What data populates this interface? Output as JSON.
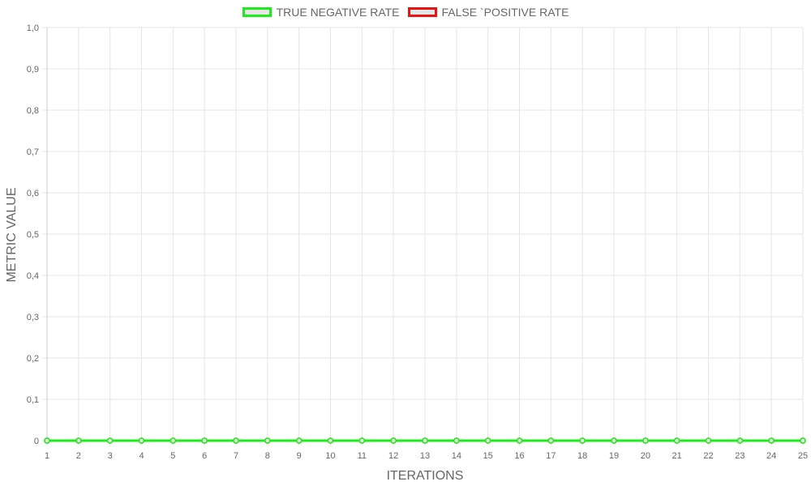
{
  "chart_data": {
    "type": "line",
    "xlabel": "ITERATIONS",
    "ylabel": "METRIC VALUE",
    "x": [
      "1",
      "2",
      "3",
      "4",
      "5",
      "6",
      "7",
      "8",
      "9",
      "10",
      "11",
      "12",
      "13",
      "14",
      "15",
      "16",
      "17",
      "18",
      "19",
      "20",
      "21",
      "22",
      "23",
      "24",
      "25"
    ],
    "y_ticks": [
      "1,0",
      "0,9",
      "0,8",
      "0,7",
      "0,6",
      "0,5",
      "0,4",
      "0,3",
      "0,2",
      "0,1",
      "0"
    ],
    "ylim": [
      0,
      1
    ],
    "grid": true,
    "legend_position": "top-center",
    "series": [
      {
        "name": "TRUE NEGATIVE RATE",
        "color": "#1aee1a",
        "values": [
          0,
          0,
          0,
          0,
          0,
          0,
          0,
          0,
          0,
          0,
          0,
          0,
          0,
          0,
          0,
          0,
          0,
          0,
          0,
          0,
          0,
          0,
          0,
          0,
          0
        ]
      },
      {
        "name": "FALSE `POSITIVE RATE",
        "color": "#ee1111",
        "values": [
          0,
          0,
          0,
          0,
          0,
          0,
          0,
          0,
          0,
          0,
          0,
          0,
          0,
          0,
          0,
          0,
          0,
          0,
          0,
          0,
          0,
          0,
          0,
          0,
          0
        ]
      }
    ]
  }
}
